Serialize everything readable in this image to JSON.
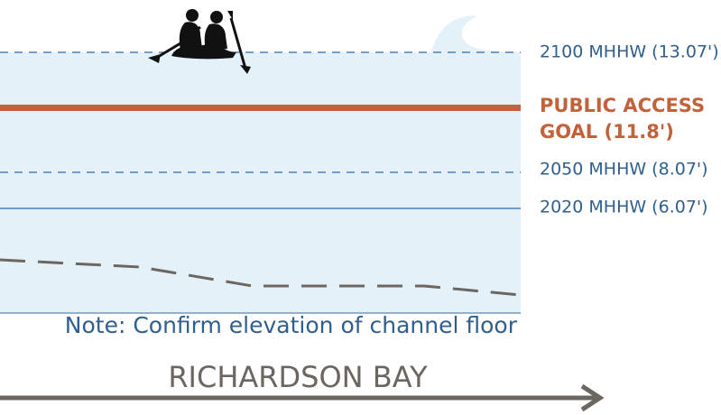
{
  "levels": [
    {
      "label": "2100 MHHW (13.07')"
    },
    {
      "label_lines": [
        "PUBLIC ACCESS",
        "GOAL  (11.8')"
      ]
    },
    {
      "label": "2050 MHHW (8.07')"
    },
    {
      "label": "2020 MHHW (6.07')"
    }
  ],
  "note": "Note: Confirm elevation of channel floor",
  "location": "RICHARDSON BAY"
}
